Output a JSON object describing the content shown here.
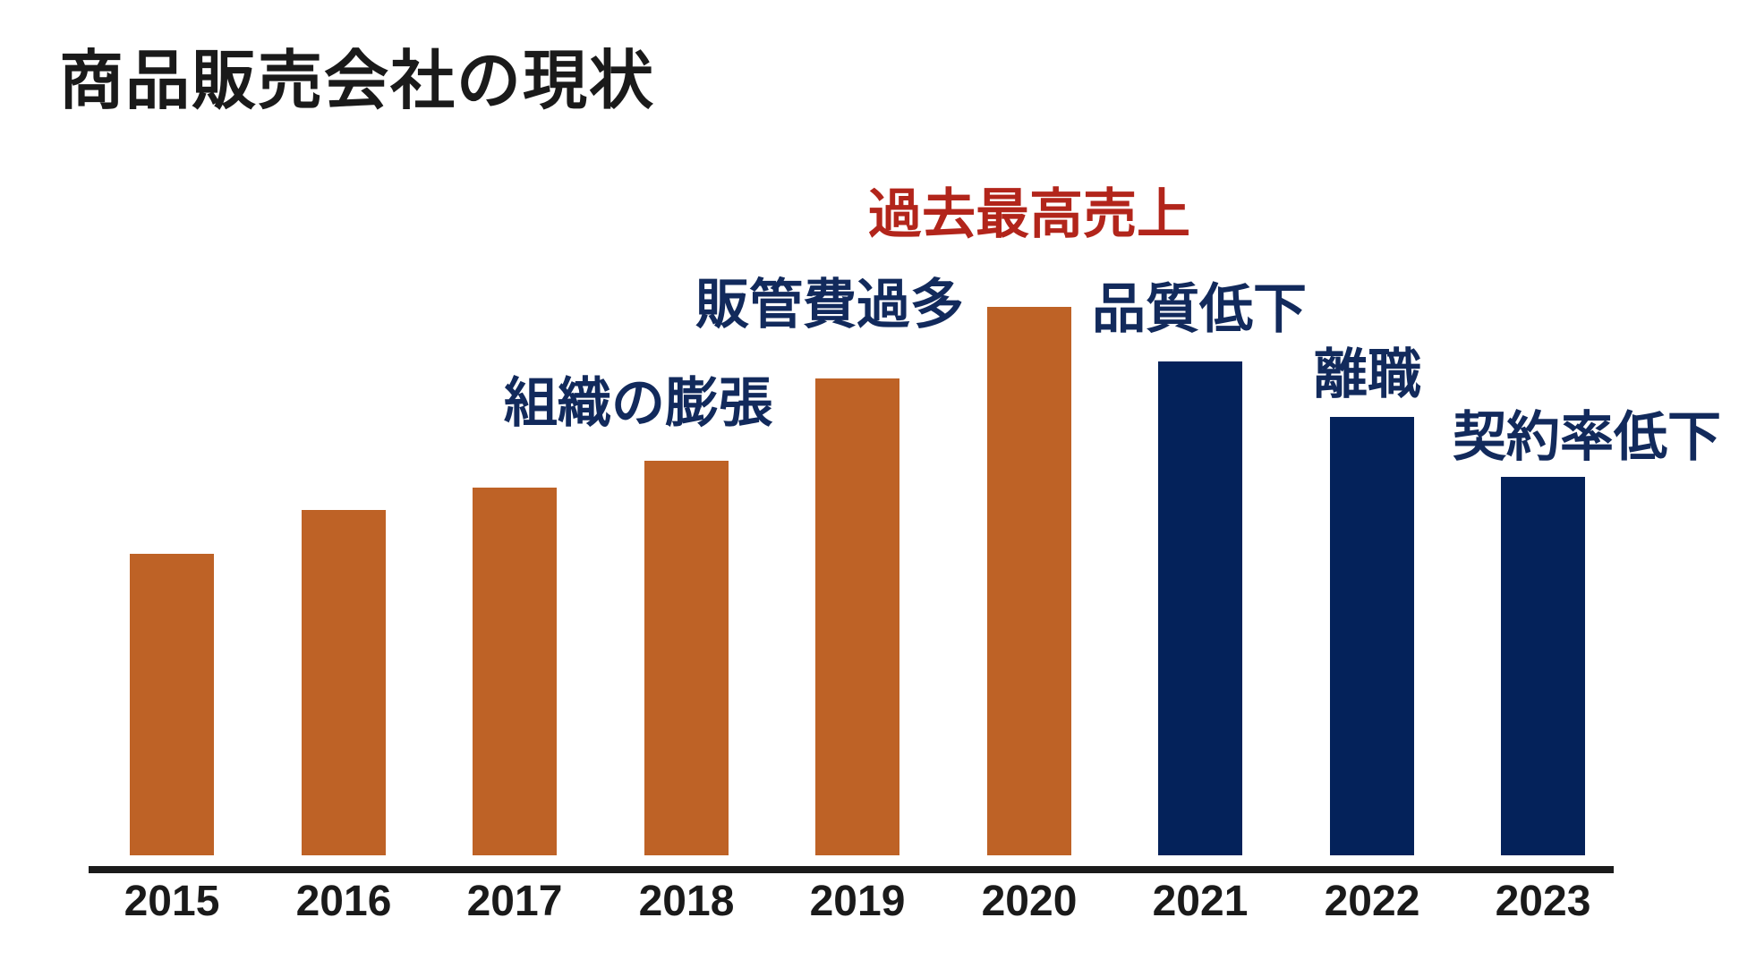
{
  "page": {
    "title": "商品販売会社の現状"
  },
  "colors": {
    "background": "#FFFFFF",
    "text": "#1A1A1A",
    "axis": "#1B1B1B",
    "bar_orange": "#BE6226",
    "bar_navy": "#04225A",
    "annotation_navy": "#122A5C",
    "annotation_red": "#B2251B"
  },
  "chart_data": {
    "type": "bar",
    "title": "商品販売会社の現状",
    "xlabel": "",
    "ylabel": "",
    "value_axis_shown": false,
    "value_note": "no numeric axis in image; values are bar heights relative to 2020 peak = 100",
    "categories": [
      "2015",
      "2016",
      "2017",
      "2018",
      "2019",
      "2020",
      "2021",
      "2022",
      "2023"
    ],
    "values": [
      55,
      63,
      67,
      72,
      87,
      100,
      90,
      80,
      69
    ],
    "bar_colors": [
      "orange",
      "orange",
      "orange",
      "orange",
      "orange",
      "orange",
      "navy",
      "navy",
      "navy"
    ],
    "legend": null,
    "grid": false,
    "annotations": [
      {
        "target_year": "2018",
        "label": "組織の膨張",
        "color": "navy"
      },
      {
        "target_year": "2019",
        "label": "販管費過多",
        "color": "navy"
      },
      {
        "target_year": "2020",
        "label": "過去最高売上",
        "color": "red"
      },
      {
        "target_year": "2021",
        "label": "品質低下",
        "color": "navy"
      },
      {
        "target_year": "2022",
        "label": "離職",
        "color": "navy"
      },
      {
        "target_year": "2023",
        "label": "契約率低下",
        "color": "navy"
      }
    ]
  }
}
